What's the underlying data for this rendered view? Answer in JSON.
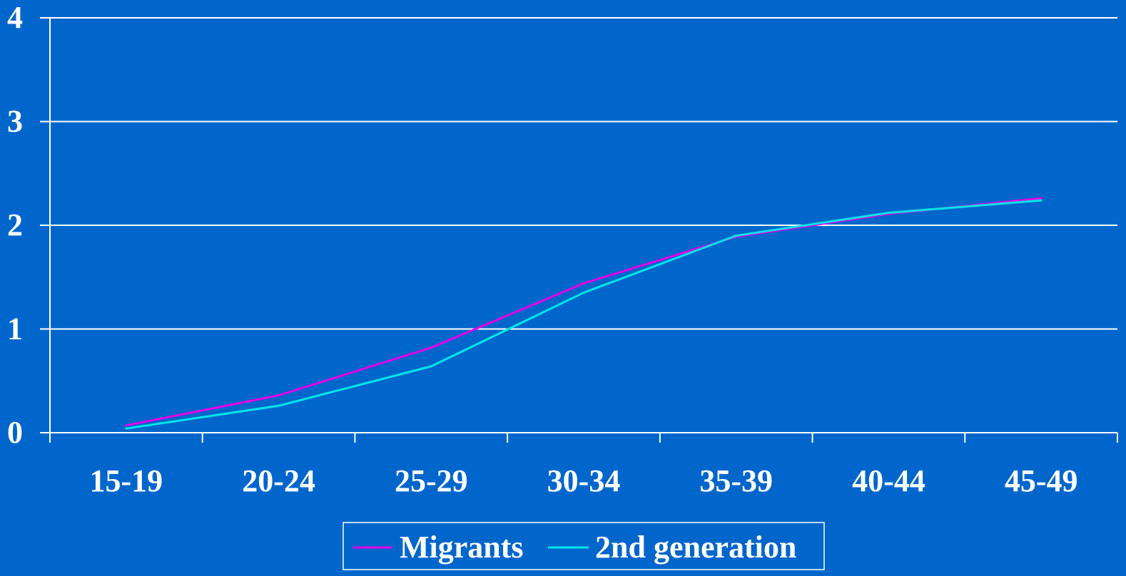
{
  "chart_data": {
    "type": "line",
    "categories": [
      "15-19",
      "20-24",
      "25-29",
      "30-34",
      "35-39",
      "40-44",
      "45-49"
    ],
    "series": [
      {
        "name": "Migrants",
        "color": "#e600e6",
        "values": [
          0.07,
          0.36,
          0.82,
          1.44,
          1.89,
          2.11,
          2.26
        ]
      },
      {
        "name": "2nd generation",
        "color": "#00e6e6",
        "values": [
          0.04,
          0.26,
          0.64,
          1.35,
          1.9,
          2.12,
          2.24
        ]
      }
    ],
    "yticks": [
      "0",
      "1",
      "2",
      "3",
      "4"
    ],
    "ylim": [
      0,
      4
    ],
    "grid": true,
    "legend_position": "bottom-center",
    "colors": {
      "background": "#0066cc",
      "axis": "#ffffff",
      "grid": "#ffffff",
      "text": "#ffffff"
    }
  }
}
